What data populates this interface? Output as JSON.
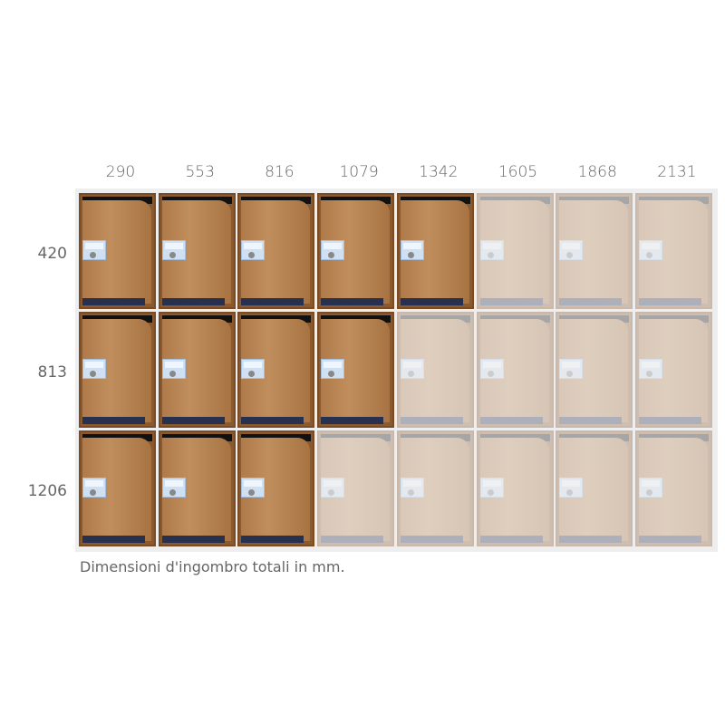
{
  "column_labels": [
    "290",
    "553",
    "816",
    "1079",
    "1342",
    "1605",
    "1868",
    "2131"
  ],
  "row_labels": [
    "420",
    "813",
    "1206"
  ],
  "active_columns_per_row": [
    5,
    4,
    3
  ],
  "caption": "Dimensioni d'ingombro totali in mm.",
  "colors": {
    "door_wood": "#b07a4a",
    "frame": "#eeeeee",
    "nameplate": "#cfe0f3"
  }
}
